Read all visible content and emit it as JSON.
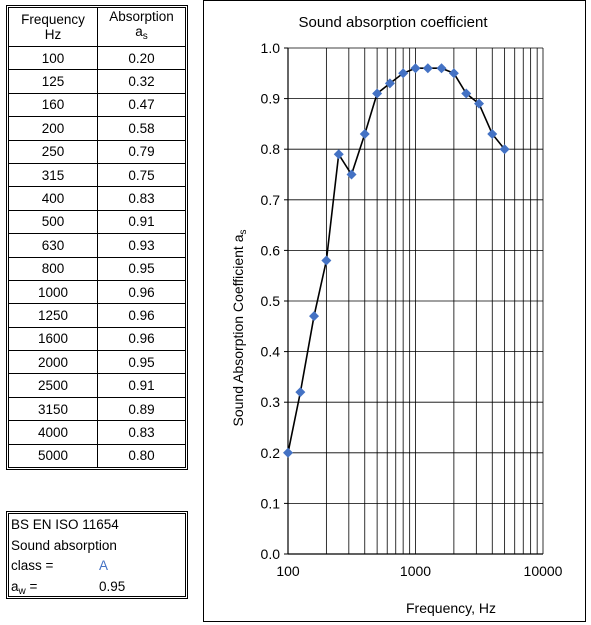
{
  "table": {
    "header_freq_line1": "Frequency",
    "header_freq_line2": "Hz",
    "header_abs_line1": "Absorption",
    "header_abs_symbol": "a",
    "header_abs_subscript": "s",
    "rows": [
      {
        "f": "100",
        "a": "0.20"
      },
      {
        "f": "125",
        "a": "0.32"
      },
      {
        "f": "160",
        "a": "0.47"
      },
      {
        "f": "200",
        "a": "0.58"
      },
      {
        "f": "250",
        "a": "0.79"
      },
      {
        "f": "315",
        "a": "0.75"
      },
      {
        "f": "400",
        "a": "0.83"
      },
      {
        "f": "500",
        "a": "0.91"
      },
      {
        "f": "630",
        "a": "0.93"
      },
      {
        "f": "800",
        "a": "0.95"
      },
      {
        "f": "1000",
        "a": "0.96"
      },
      {
        "f": "1250",
        "a": "0.96"
      },
      {
        "f": "1600",
        "a": "0.96"
      },
      {
        "f": "2000",
        "a": "0.95"
      },
      {
        "f": "2500",
        "a": "0.91"
      },
      {
        "f": "3150",
        "a": "0.89"
      },
      {
        "f": "4000",
        "a": "0.83"
      },
      {
        "f": "5000",
        "a": "0.80"
      }
    ]
  },
  "classbox": {
    "standard": "BS EN ISO 11654",
    "line2": "Sound absorption",
    "class_label": "class =",
    "class_value": "A",
    "aw_symbol": "a",
    "aw_subscript": "w",
    "aw_eq": " =",
    "aw_value": "0.95"
  },
  "colors": {
    "marker": "#4472C4",
    "line": "#000000",
    "class_value": "#4472C4"
  },
  "chart_data": {
    "type": "line",
    "title": "Sound absorption coefficient",
    "xlabel": "Frequency, Hz",
    "ylabel_main": "Sound Absorption Coefficient a",
    "ylabel_subscript": "s",
    "xscale": "log",
    "xlim": [
      100,
      10000
    ],
    "ylim": [
      0.0,
      1.0
    ],
    "grid": true,
    "x_ticks": [
      "100",
      "1000",
      "10000"
    ],
    "y_ticks": [
      "0.0",
      "0.1",
      "0.2",
      "0.3",
      "0.4",
      "0.5",
      "0.6",
      "0.7",
      "0.8",
      "0.9",
      "1.0"
    ],
    "series": [
      {
        "x": [
          100,
          125,
          160,
          200,
          250,
          315,
          400,
          500,
          630,
          800,
          1000,
          1250,
          1600,
          2000,
          2500,
          3150,
          4000,
          5000
        ],
        "values": [
          0.2,
          0.32,
          0.47,
          0.58,
          0.79,
          0.75,
          0.83,
          0.91,
          0.93,
          0.95,
          0.96,
          0.96,
          0.96,
          0.95,
          0.91,
          0.89,
          0.83,
          0.8
        ]
      }
    ]
  }
}
